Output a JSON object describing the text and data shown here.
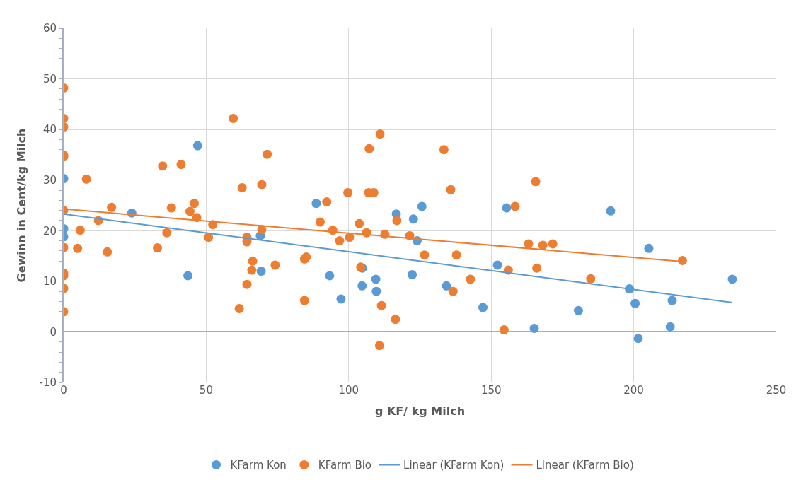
{
  "chart_data": {
    "type": "scatter",
    "xlabel": "g KF/ kg Milch",
    "ylabel": "Gewinn in Cent/kg Milch",
    "xlim": [
      0,
      250
    ],
    "xticks": [
      0,
      50,
      100,
      150,
      200,
      250
    ],
    "ylim": [
      -10,
      60
    ],
    "yticks": [
      -10,
      0,
      10,
      20,
      30,
      40,
      50,
      60
    ],
    "grid": true,
    "legend": "bottom",
    "series": [
      {
        "name": "KFarm Kon",
        "color": "#5b9bd5",
        "marker": "circle",
        "x": [
          0,
          0,
          0,
          23.9,
          43.6,
          47,
          69,
          69.3,
          88.6,
          93.3,
          97.3,
          104.8,
          104.7,
          109.5,
          109.7,
          116.7,
          122.7,
          122.3,
          124,
          125.7,
          134.3,
          147.1,
          152.2,
          155.4,
          165.1,
          180.6,
          191.9,
          198.5,
          200.5,
          201.6,
          205.3,
          212.8,
          213.5,
          234.6
        ],
        "values": [
          30.3,
          20.4,
          18.8,
          23.5,
          11.1,
          36.8,
          19,
          12,
          25.4,
          11.1,
          6.5,
          12.6,
          9.1,
          10.4,
          8,
          23.3,
          22.3,
          11.3,
          18,
          24.8,
          9.1,
          4.8,
          13.2,
          24.5,
          0.7,
          4.2,
          23.9,
          8.5,
          5.6,
          -1.3,
          16.5,
          1,
          6.2,
          10.4
        ]
      },
      {
        "name": "KFarm Bio",
        "color": "#ed7d31",
        "marker": "circle",
        "x": [
          0,
          0,
          0,
          0,
          0,
          0,
          0,
          0,
          0,
          0,
          0,
          5.8,
          4.9,
          8,
          12.2,
          15.3,
          16.8,
          32.9,
          34.7,
          36.2,
          37.8,
          41.2,
          44.3,
          45.8,
          46.7,
          50.8,
          52.3,
          59.5,
          61.6,
          62.6,
          64.3,
          64.3,
          64.3,
          66.3,
          66,
          69.5,
          69.5,
          71.4,
          74.2,
          84.5,
          84.5,
          85.1,
          90,
          92.3,
          94.4,
          96.8,
          99.7,
          100.3,
          103.7,
          104.2,
          106.3,
          107.2,
          107,
          108.8,
          111,
          111.5,
          110.8,
          112.7,
          116.4,
          116.9,
          121.4,
          126.6,
          133.4,
          135.8,
          136.6,
          137.8,
          142.7,
          154.5,
          156,
          158.4,
          163.1,
          165.6,
          166,
          168.1,
          171.6,
          184.9,
          217.1
        ],
        "values": [
          48.2,
          42.2,
          40.5,
          34.9,
          34.6,
          24,
          16.7,
          11.6,
          11.1,
          8.6,
          4,
          20.1,
          16.5,
          30.2,
          22,
          15.8,
          24.6,
          16.6,
          32.8,
          19.6,
          24.5,
          33.1,
          23.8,
          25.4,
          22.6,
          18.7,
          21.2,
          42.2,
          4.6,
          28.5,
          18.7,
          17.8,
          9.4,
          14,
          12.2,
          29.1,
          20.2,
          35.1,
          13.2,
          14.4,
          6.2,
          14.8,
          21.7,
          25.7,
          20.1,
          18,
          27.5,
          18.7,
          21.4,
          12.8,
          19.6,
          36.2,
          27.5,
          27.5,
          39.1,
          5.2,
          -2.7,
          19.3,
          2.5,
          22,
          19,
          15.2,
          36,
          28.1,
          8,
          15.2,
          10.4,
          0.4,
          12.2,
          24.8,
          17.4,
          29.7,
          12.6,
          17.1,
          17.4,
          10.5,
          14.1
        ]
      },
      {
        "name": "Linear (KFarm Kon)",
        "type": "line",
        "marker": "none",
        "color": "#5b9bd5",
        "x": [
          0,
          234.6
        ],
        "values": [
          23.3,
          5.8
        ]
      },
      {
        "name": "Linear (KFarm Bio)",
        "type": "line",
        "marker": "none",
        "color": "#ed7d31",
        "x": [
          0,
          217.1
        ],
        "values": [
          24.3,
          13.9
        ]
      }
    ]
  }
}
